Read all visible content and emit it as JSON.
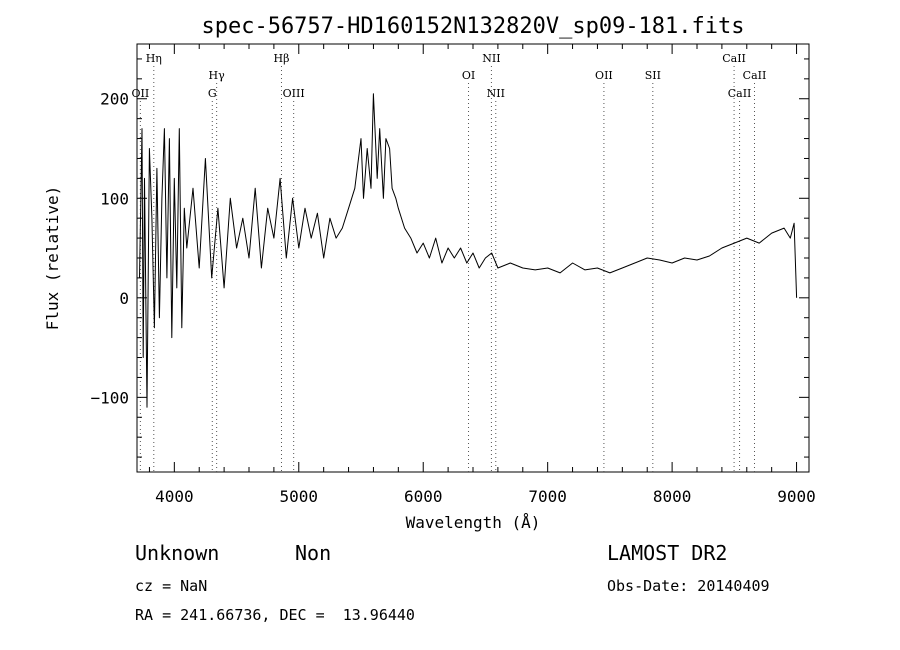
{
  "chart_data": {
    "type": "line",
    "title": "spec-56757-HD160152N132820V_sp09-181.fits",
    "xlabel": "Wavelength (Å)",
    "ylabel": "Flux (relative)",
    "xlim": [
      3700,
      9100
    ],
    "ylim": [
      -175,
      255
    ],
    "xticks": [
      4000,
      5000,
      6000,
      7000,
      8000,
      9000
    ],
    "yticks": [
      -100,
      0,
      100,
      200
    ],
    "series": [
      {
        "x": [
          3720,
          3740,
          3750,
          3760,
          3780,
          3800,
          3820,
          3840,
          3860,
          3880,
          3900,
          3920,
          3940,
          3960,
          3980,
          4000,
          4020,
          4040,
          4060,
          4080,
          4100,
          4150,
          4200,
          4250,
          4300,
          4350,
          4400,
          4450,
          4500,
          4550,
          4600,
          4650,
          4700,
          4750,
          4800,
          4850,
          4900,
          4950,
          5000,
          5050,
          5100,
          5150,
          5200,
          5250,
          5300,
          5350,
          5400,
          5450,
          5500,
          5520,
          5550,
          5580,
          5600,
          5630,
          5650,
          5680,
          5700,
          5730,
          5750,
          5780,
          5800,
          5850,
          5900,
          5950,
          6000,
          6050,
          6100,
          6150,
          6200,
          6250,
          6300,
          6350,
          6400,
          6450,
          6500,
          6550,
          6600,
          6700,
          6800,
          6900,
          7000,
          7100,
          7200,
          7300,
          7400,
          7500,
          7600,
          7700,
          7800,
          7900,
          8000,
          8100,
          8200,
          8300,
          8400,
          8500,
          8600,
          8700,
          8800,
          8900,
          8950,
          8980,
          9000
        ],
        "y": [
          20,
          170,
          -60,
          120,
          -110,
          150,
          80,
          -30,
          130,
          -20,
          100,
          170,
          20,
          160,
          -40,
          120,
          10,
          170,
          -30,
          90,
          50,
          110,
          30,
          140,
          20,
          90,
          10,
          100,
          50,
          80,
          40,
          110,
          30,
          90,
          60,
          120,
          40,
          100,
          50,
          90,
          60,
          85,
          40,
          80,
          60,
          70,
          90,
          110,
          160,
          100,
          150,
          110,
          205,
          120,
          170,
          100,
          160,
          150,
          110,
          100,
          90,
          70,
          60,
          45,
          55,
          40,
          60,
          35,
          50,
          40,
          50,
          35,
          45,
          30,
          40,
          45,
          30,
          35,
          30,
          28,
          30,
          25,
          35,
          28,
          30,
          25,
          30,
          35,
          40,
          38,
          35,
          40,
          38,
          42,
          50,
          55,
          60,
          55,
          65,
          70,
          60,
          75,
          0
        ]
      }
    ],
    "annotations": [
      {
        "text": "Hη",
        "x": 3835,
        "row": 0
      },
      {
        "text": "OII",
        "x": 3727,
        "row": 2
      },
      {
        "text": "Hγ",
        "x": 4340,
        "row": 1
      },
      {
        "text": "G",
        "x": 4305,
        "row": 2
      },
      {
        "text": "Hβ",
        "x": 4861,
        "row": 0
      },
      {
        "text": "OIII",
        "x": 4959,
        "row": 2
      },
      {
        "text": "OI",
        "x": 6364,
        "row": 1
      },
      {
        "text": "NII",
        "x": 6548,
        "row": 0
      },
      {
        "text": "NII",
        "x": 6583,
        "row": 2
      },
      {
        "text": "OII",
        "x": 7452,
        "row": 1
      },
      {
        "text": "SII",
        "x": 7845,
        "row": 1
      },
      {
        "text": "CaII",
        "x": 8498,
        "row": 0
      },
      {
        "text": "CaII",
        "x": 8542,
        "row": 2
      },
      {
        "text": "CaII",
        "x": 8662,
        "row": 1
      }
    ]
  },
  "info": {
    "class": "Unknown",
    "subclass": "Non",
    "cz": "cz = NaN",
    "coords": "RA = 241.66736, DEC =  13.96440",
    "survey": "LAMOST DR2",
    "obs_date": "Obs-Date: 20140409"
  }
}
